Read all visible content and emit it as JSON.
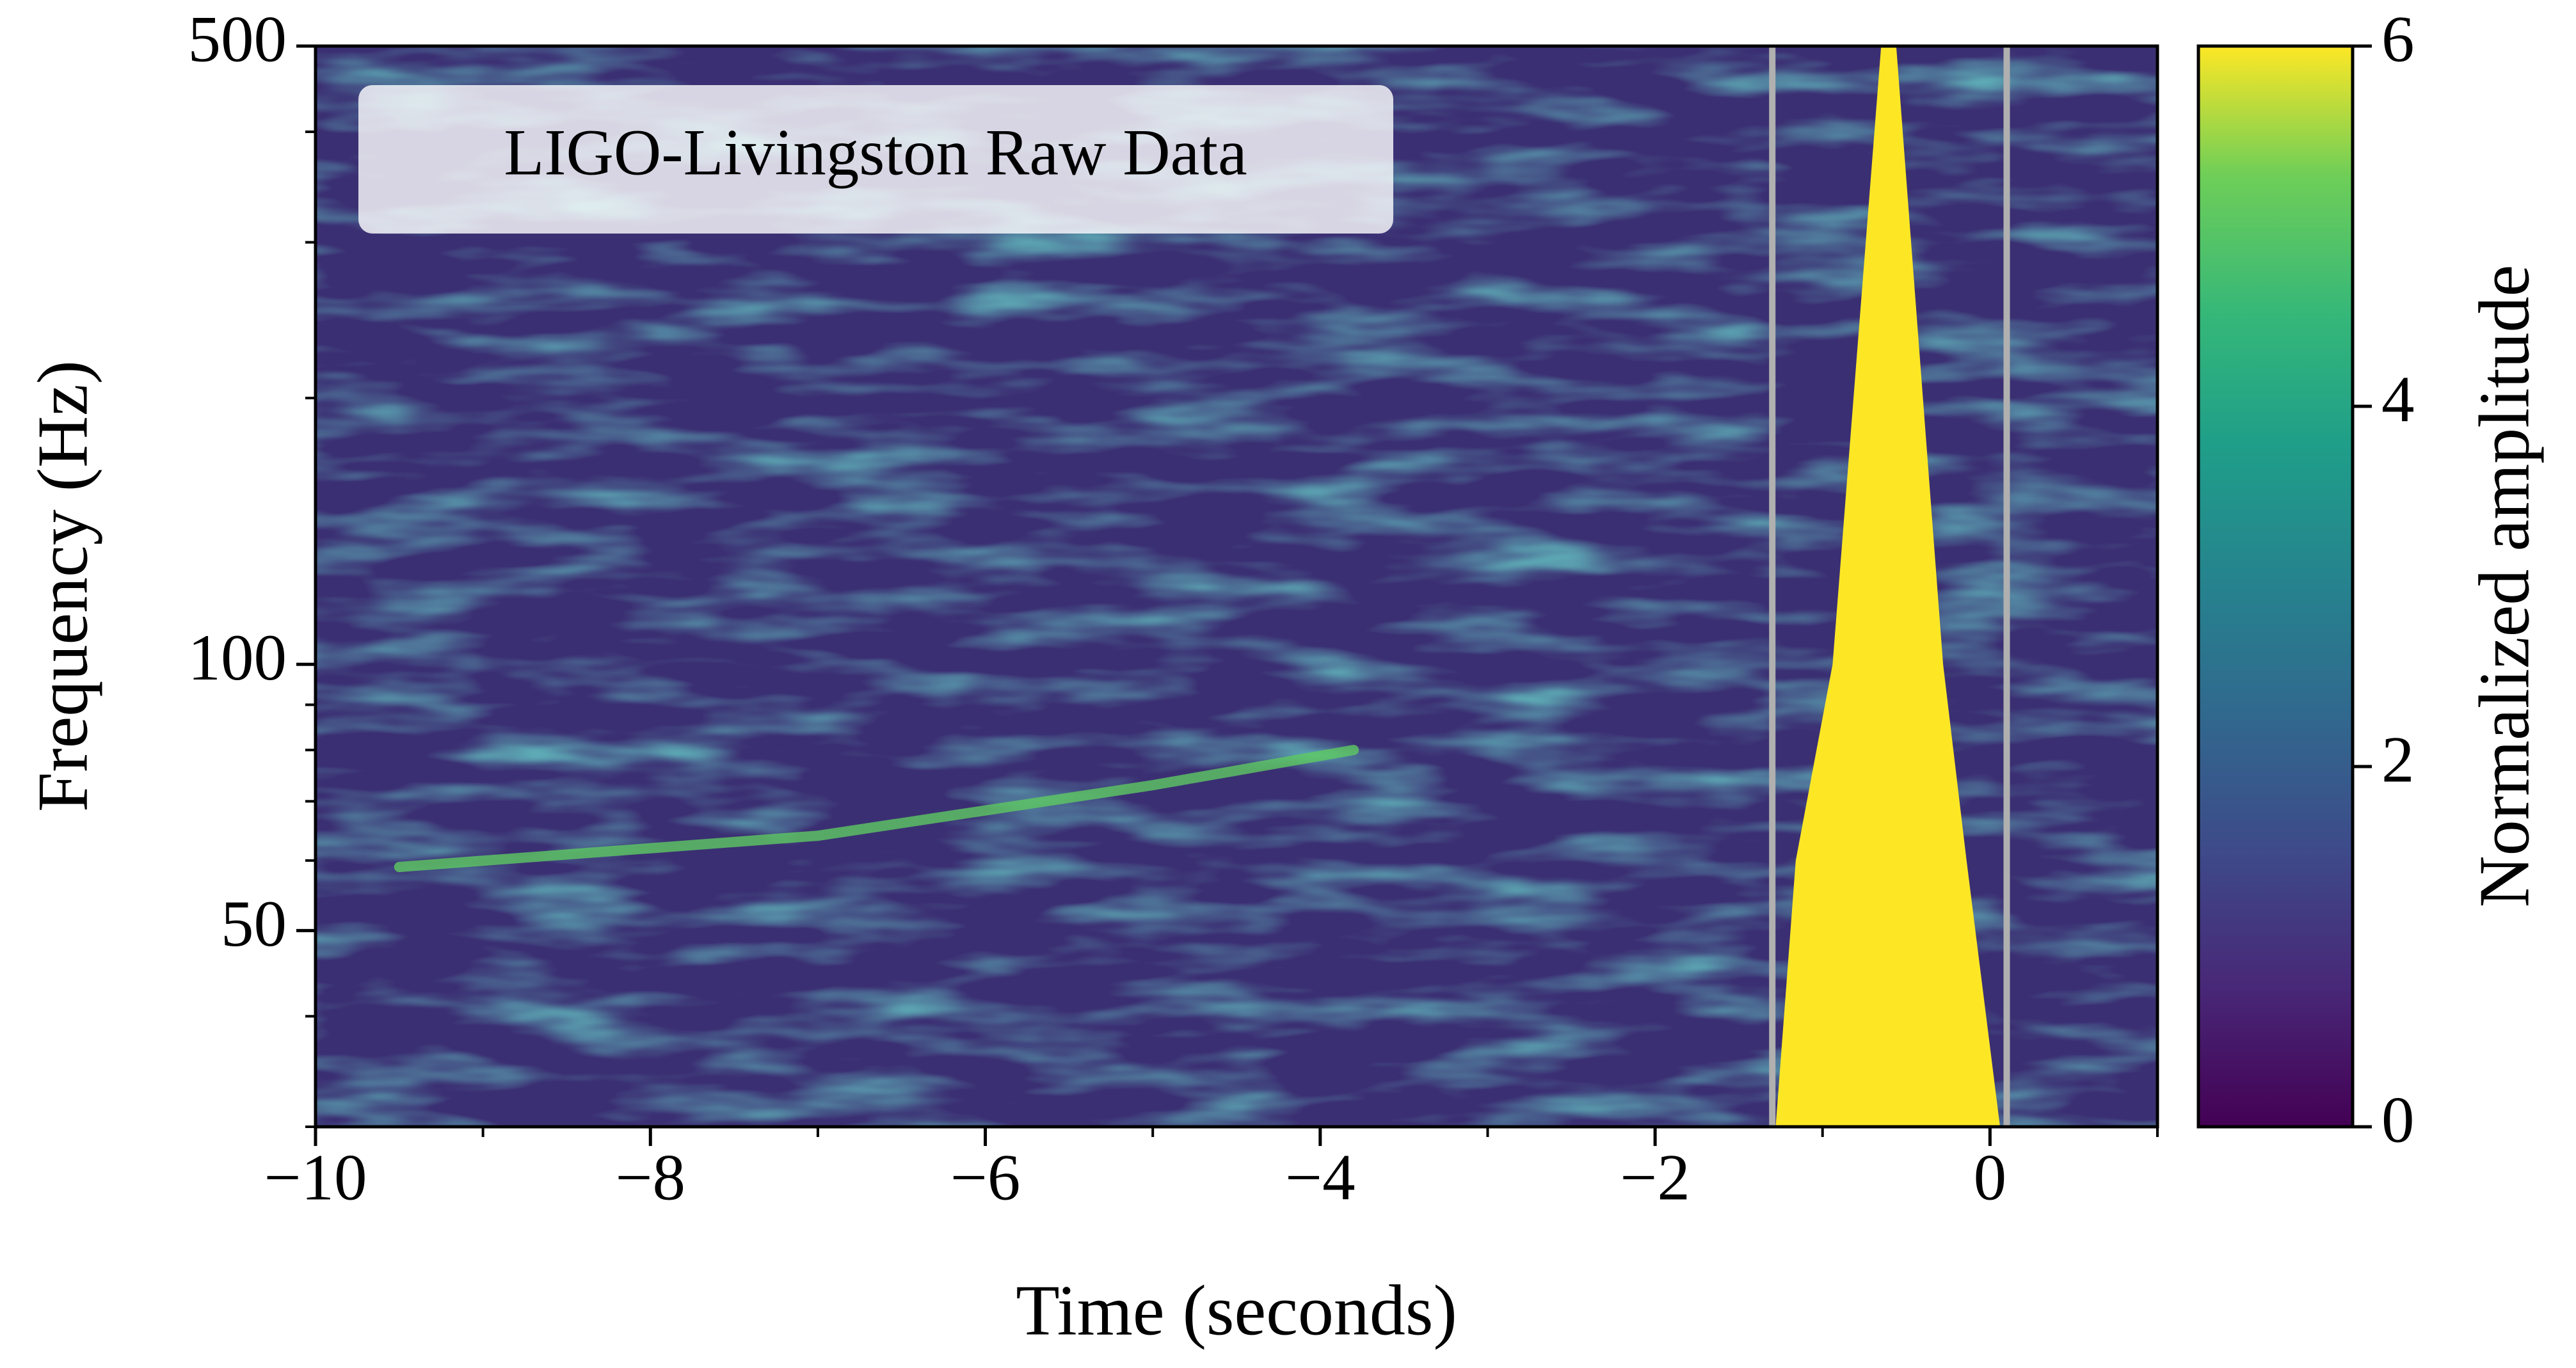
{
  "chart_data": {
    "type": "spectrogram",
    "annotation": "LIGO-Livingston Raw Data",
    "xlabel": "Time (seconds)",
    "ylabel": "Frequency (Hz)",
    "xlim": [
      -10,
      1
    ],
    "xticks": [
      {
        "value": -10,
        "label": "−10"
      },
      {
        "value": -8,
        "label": "−8"
      },
      {
        "value": -6,
        "label": "−6"
      },
      {
        "value": -4,
        "label": "−4"
      },
      {
        "value": -2,
        "label": "−2"
      },
      0
    ],
    "xminorticks": [
      -9,
      -7,
      -5,
      -3,
      -1,
      1
    ],
    "ylim": [
      30,
      500
    ],
    "yscale": "log",
    "yticks": [
      50,
      100,
      500
    ],
    "yminorticks": [
      30,
      40,
      60,
      70,
      80,
      90,
      200,
      300,
      400
    ],
    "vlines": [
      -1.3,
      0.1
    ],
    "vline_color": "#b0b0b0",
    "glitch": {
      "x": [
        -0.65,
        -0.94,
        -1.16,
        -1.28,
        0.06,
        -0.14,
        -0.28,
        -0.56
      ],
      "y": [
        500,
        100,
        60,
        30,
        30,
        60,
        100,
        500
      ],
      "color": "#fde725"
    },
    "chirp": {
      "x": [
        -9.5,
        -7,
        -5,
        -3.8
      ],
      "y": [
        59,
        64,
        73,
        80
      ],
      "color": "#5ec962"
    },
    "colorbar": {
      "label": "Normalized amplitude",
      "lim": [
        0,
        6
      ],
      "ticks": [
        0,
        2,
        4,
        6
      ]
    }
  }
}
